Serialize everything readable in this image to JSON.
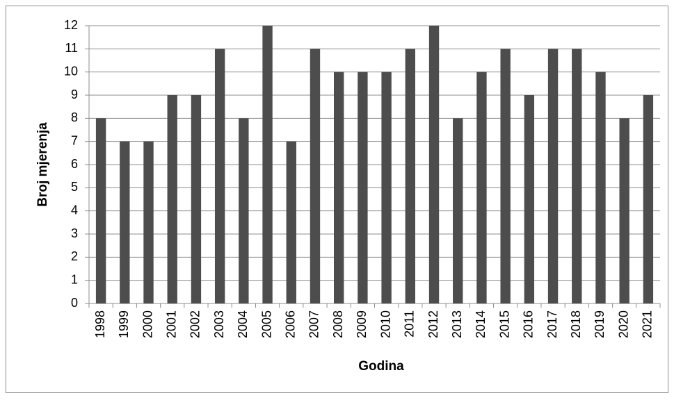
{
  "chart_data": {
    "type": "bar",
    "x_label": "Godina",
    "y_label": "Broj mjerenja",
    "categories": [
      "1998",
      "1999",
      "2000",
      "2001",
      "2002",
      "2003",
      "2004",
      "2005",
      "2006",
      "2007",
      "2008",
      "2009",
      "2010",
      "2011",
      "2012",
      "2013",
      "2014",
      "2015",
      "2016",
      "2017",
      "2018",
      "2019",
      "2020",
      "2021"
    ],
    "values": [
      8,
      7,
      7,
      9,
      9,
      11,
      8,
      12,
      7,
      11,
      10,
      10,
      10,
      11,
      12,
      8,
      10,
      11,
      9,
      11,
      11,
      10,
      8,
      9
    ],
    "color": "#4d4d4d",
    "ylim": [
      0,
      12
    ],
    "yticks": [
      0,
      1,
      2,
      3,
      4,
      5,
      6,
      7,
      8,
      9,
      10,
      11,
      12
    ],
    "grid": true
  }
}
